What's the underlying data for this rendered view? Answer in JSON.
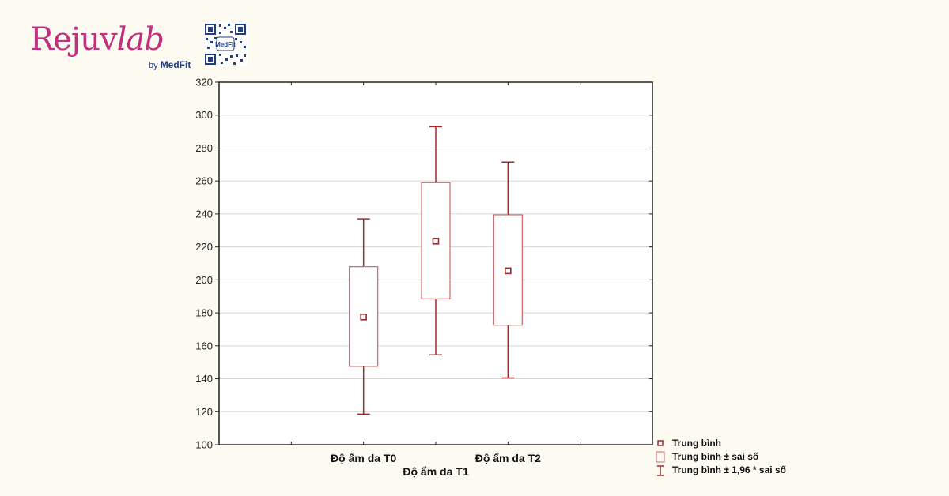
{
  "brand": {
    "name_part1": "Rejuv",
    "name_part2": "lab",
    "sub_prefix": "by",
    "sub_brand": "MedFit",
    "qr_label": "MedFit"
  },
  "chart_data": {
    "type": "boxplot",
    "title": "",
    "xlabel": "",
    "ylabel": "",
    "ylim": [
      100,
      320
    ],
    "yticks": [
      100,
      120,
      140,
      160,
      180,
      200,
      220,
      240,
      260,
      280,
      300,
      320
    ],
    "grid": true,
    "categories": [
      "Độ ẩm da T0",
      "Độ ẩm da T1",
      "Độ ẩm da T2"
    ],
    "mean": [
      177.5,
      223.5,
      205.5
    ],
    "box_low": [
      147.5,
      188.5,
      172.5
    ],
    "box_high": [
      208.0,
      259.0,
      239.5
    ],
    "whisker_low": [
      118.5,
      154.5,
      140.5
    ],
    "whisker_high": [
      237.0,
      293.0,
      271.5
    ],
    "colors": {
      "mark": "#9b2b2b",
      "box": "#c9686b",
      "grid": "#d6d6d6",
      "frame": "#222222"
    },
    "legend_position": "bottom-right",
    "legend": [
      {
        "symbol": "square-marker",
        "label": "Trung bình"
      },
      {
        "symbol": "box",
        "label": "Trung bình ± sai số"
      },
      {
        "symbol": "whisker",
        "label": "Trung bình ± 1,96 * sai số"
      }
    ]
  }
}
